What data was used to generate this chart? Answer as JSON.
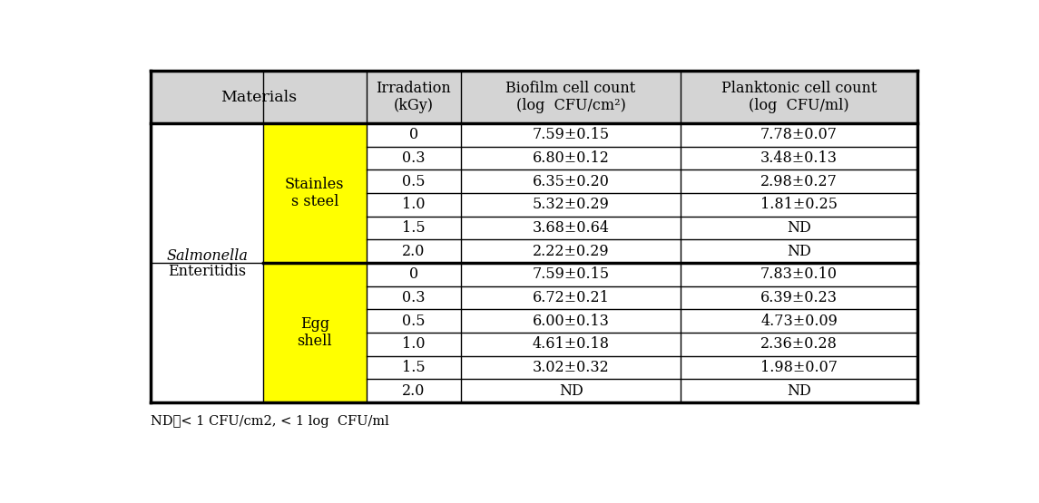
{
  "bacteria_line1": "Salmonella",
  "bacteria_line2": "Enteritidis",
  "material1": "Stainles\ns steel",
  "material2": "Egg\nshell",
  "material1_color": "#ffff00",
  "material2_color": "#ffff00",
  "header_bg": "#d4d4d4",
  "header_col0": "Materials",
  "header_col2": "Irradation\n(kGy)",
  "header_col3": "Biofilm cell count\n(log  CFU/cm²)",
  "header_col4": "Planktonic cell count\n(log  CFU/ml)",
  "data": [
    [
      "0",
      "7.59±0.15",
      "7.78±0.07"
    ],
    [
      "0.3",
      "6.80±0.12",
      "3.48±0.13"
    ],
    [
      "0.5",
      "6.35±0.20",
      "2.98±0.27"
    ],
    [
      "1.0",
      "5.32±0.29",
      "1.81±0.25"
    ],
    [
      "1.5",
      "3.68±0.64",
      "ND"
    ],
    [
      "2.0",
      "2.22±0.29",
      "ND"
    ],
    [
      "0",
      "7.59±0.15",
      "7.83±0.10"
    ],
    [
      "0.3",
      "6.72±0.21",
      "6.39±0.23"
    ],
    [
      "0.5",
      "6.00±0.13",
      "4.73±0.09"
    ],
    [
      "1.0",
      "4.61±0.18",
      "2.36±0.28"
    ],
    [
      "1.5",
      "3.02±0.32",
      "1.98±0.07"
    ],
    [
      "2.0",
      "ND",
      "ND"
    ]
  ],
  "footnote": "ND：< 1 CFU/cm2, < 1 log  CFU/ml",
  "fontsize": 11.5,
  "footnote_fontsize": 10.5
}
